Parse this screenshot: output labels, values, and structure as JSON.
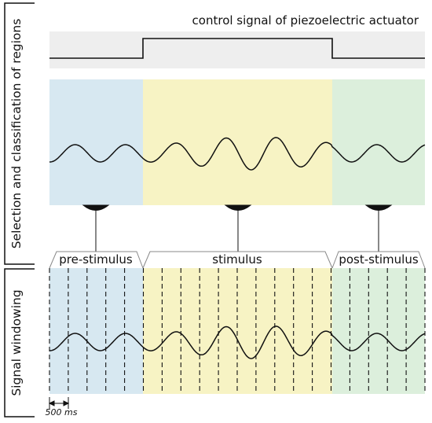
{
  "top_title": "control signal of piezoelectric actuator",
  "section_labels": {
    "selection": "Selection and classification of regions",
    "windowing": "Signal windowing"
  },
  "regions": [
    {
      "key": "pre",
      "label": "pre-stimulus",
      "color": "#d7e8f1"
    },
    {
      "key": "stim",
      "label": "stimulus",
      "color": "#f7f3c4"
    },
    {
      "key": "post",
      "label": "post-stimulus",
      "color": "#dcefdc"
    }
  ],
  "control_signal_color": "#eeeeee",
  "window_scale_label": "500 ms"
}
